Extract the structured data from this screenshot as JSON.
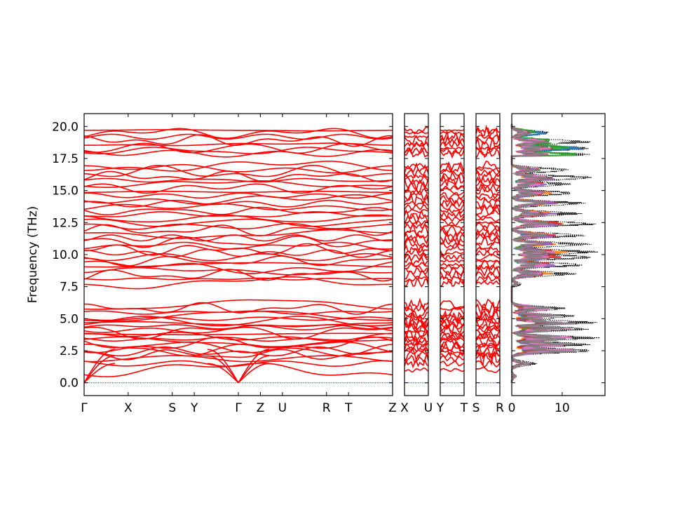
{
  "chart_data": {
    "type": "line",
    "title": "",
    "ylabel": "Frequency (THz)",
    "ylim": [
      -1.0,
      21.0
    ],
    "yticks": [
      "0.0",
      "2.5",
      "5.0",
      "7.5",
      "10.0",
      "12.5",
      "15.0",
      "17.5",
      "20.0"
    ],
    "ytick_values": [
      0.0,
      2.5,
      5.0,
      7.5,
      10.0,
      12.5,
      15.0,
      17.5,
      20.0
    ],
    "band_color": "#ff0000",
    "zero_line_color": "#0000cc",
    "panels": [
      {
        "name": "main-path",
        "path_labels": [
          "Γ",
          "X",
          "S",
          "Y",
          "Γ",
          "Z",
          "U",
          "R",
          "T",
          "Z"
        ],
        "path_positions": [
          0.0,
          0.5,
          1.0,
          1.25,
          1.75,
          2.0,
          2.25,
          2.75,
          3.0,
          3.5
        ],
        "gamma_positions": [
          0.0,
          1.75
        ]
      },
      {
        "name": "segment-X-U",
        "path_labels": [
          "X",
          "U"
        ],
        "path_positions": [
          0,
          1
        ]
      },
      {
        "name": "segment-Y-T",
        "path_labels": [
          "Y",
          "T"
        ],
        "path_positions": [
          0,
          1
        ]
      },
      {
        "name": "segment-S-R",
        "path_labels": [
          "S",
          "R"
        ],
        "path_positions": [
          0,
          1
        ]
      }
    ],
    "band_frequencies": [
      1.0,
      1.5,
      1.9,
      2.2,
      2.4,
      2.6,
      2.8,
      3.0,
      3.2,
      3.4,
      3.6,
      3.8,
      4.0,
      4.2,
      4.4,
      4.6,
      4.8,
      5.0,
      5.2,
      5.5,
      5.8,
      6.1,
      7.8,
      8.1,
      8.4,
      8.7,
      9.0,
      9.2,
      9.5,
      9.8,
      10.1,
      10.4,
      10.7,
      11.0,
      11.3,
      11.6,
      11.9,
      12.2,
      12.5,
      12.8,
      13.1,
      13.4,
      13.7,
      14.0,
      14.3,
      14.6,
      14.9,
      15.2,
      15.5,
      15.8,
      16.1,
      16.4,
      16.7,
      16.9,
      17.9,
      18.1,
      18.3,
      18.6,
      18.9,
      19.2,
      19.5,
      19.7
    ],
    "dos": {
      "xticks": [
        "0",
        "10"
      ],
      "xtick_values": [
        0,
        10
      ],
      "xlim": [
        0,
        18.5
      ],
      "total_color": "#000000",
      "total_style": "dotted",
      "projected_colors": [
        "#1f77b4",
        "#ff7f0e",
        "#2ca02c",
        "#d62728",
        "#9467bd",
        "#8c564b",
        "#e377c2",
        "#7f7f7f"
      ],
      "total_peaks": [
        {
          "f": 0.5,
          "v": 1.0
        },
        {
          "f": 1.5,
          "v": 5.0
        },
        {
          "f": 2.5,
          "v": 17.0
        },
        {
          "f": 3.0,
          "v": 16.0
        },
        {
          "f": 3.5,
          "v": 17.5
        },
        {
          "f": 4.2,
          "v": 16.0
        },
        {
          "f": 4.7,
          "v": 17.0
        },
        {
          "f": 5.2,
          "v": 13.0
        },
        {
          "f": 5.8,
          "v": 11.0
        },
        {
          "f": 7.7,
          "v": 2.0
        },
        {
          "f": 8.5,
          "v": 13.0
        },
        {
          "f": 9.2,
          "v": 15.0
        },
        {
          "f": 9.8,
          "v": 17.0
        },
        {
          "f": 10.2,
          "v": 17.5
        },
        {
          "f": 10.8,
          "v": 16.0
        },
        {
          "f": 11.5,
          "v": 15.0
        },
        {
          "f": 12.4,
          "v": 17.5
        },
        {
          "f": 13.2,
          "v": 14.0
        },
        {
          "f": 14.0,
          "v": 15.0
        },
        {
          "f": 14.8,
          "v": 13.0
        },
        {
          "f": 15.5,
          "v": 12.0
        },
        {
          "f": 16.0,
          "v": 17.0
        },
        {
          "f": 16.6,
          "v": 12.0
        },
        {
          "f": 17.8,
          "v": 16.0
        },
        {
          "f": 18.3,
          "v": 16.5
        },
        {
          "f": 18.8,
          "v": 16.0
        },
        {
          "f": 19.5,
          "v": 8.0
        }
      ]
    }
  }
}
